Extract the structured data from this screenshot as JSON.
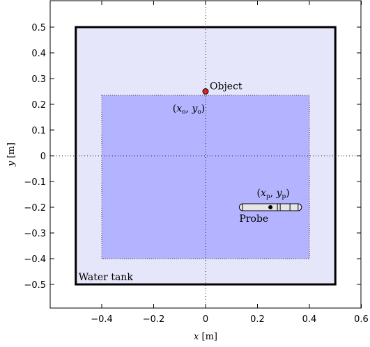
{
  "chart_data": {
    "type": "diagram",
    "xlabel": "x [m]",
    "ylabel": "y [m]",
    "xlim": [
      -0.6,
      0.6
    ],
    "ylim": [
      -0.6,
      0.6
    ],
    "x_ticks": [
      {
        "v": -0.4,
        "label": "−0.4"
      },
      {
        "v": -0.2,
        "label": "−0.2"
      },
      {
        "v": 0,
        "label": "0"
      },
      {
        "v": 0.2,
        "label": "0.2"
      },
      {
        "v": 0.4,
        "label": "0.4"
      },
      {
        "v": 0.6,
        "label": "0.6"
      }
    ],
    "y_ticks": [
      {
        "v": 0.5,
        "label": "0.5"
      },
      {
        "v": 0.4,
        "label": "0.4"
      },
      {
        "v": 0.3,
        "label": "0.3"
      },
      {
        "v": 0.2,
        "label": "0.2"
      },
      {
        "v": 0.1,
        "label": "0.1"
      },
      {
        "v": 0,
        "label": "0"
      },
      {
        "v": -0.1,
        "label": "−0.1"
      },
      {
        "v": -0.2,
        "label": "−0.2"
      },
      {
        "v": -0.3,
        "label": "−0.3"
      },
      {
        "v": -0.4,
        "label": "−0.4"
      },
      {
        "v": -0.5,
        "label": "−0.5"
      }
    ],
    "water_tank": {
      "label": "Water tank",
      "x": [
        -0.5,
        0.5
      ],
      "y": [
        -0.5,
        0.5
      ],
      "color": "#e6e6fa"
    },
    "scan_region": {
      "x": [
        -0.4,
        0.4
      ],
      "y": [
        -0.4,
        0.235
      ],
      "color": "#b3b3ff"
    },
    "object": {
      "label": "Object",
      "coord_label": "(x_o, y_o)",
      "x": 0,
      "y": 0.25,
      "color": "#dd2222"
    },
    "probe": {
      "label": "Probe",
      "coord_label": "(x_p, y_p)",
      "x": 0.25,
      "y": -0.2,
      "x_range": [
        0.13,
        0.37
      ]
    },
    "crosshair": {
      "x": 0,
      "y": 0
    }
  }
}
